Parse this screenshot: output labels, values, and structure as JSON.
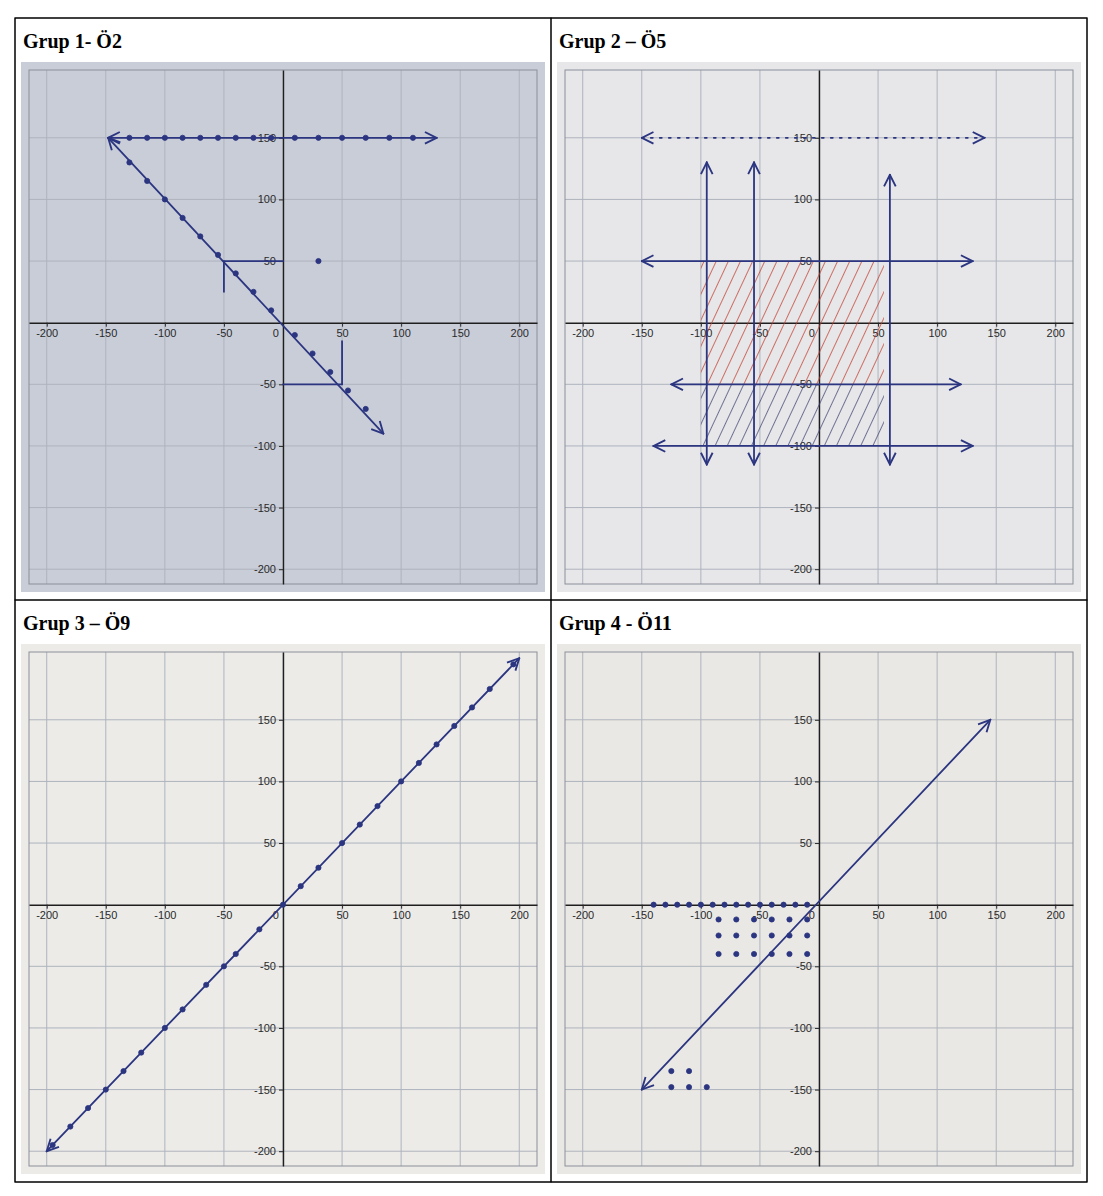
{
  "chart_data": [
    {
      "type": "line",
      "title": "Grup 1- Ö2",
      "color": "#2b3580",
      "grid": true,
      "xlim": [
        -215,
        215
      ],
      "ylim": [
        -212,
        205
      ],
      "xticks": [
        -200,
        -150,
        -100,
        -50,
        0,
        50,
        100,
        150,
        200
      ],
      "yticks": [
        -200,
        -150,
        -100,
        -50,
        50,
        100,
        150
      ],
      "series": [
        {
          "x": [
            -148,
            130
          ],
          "values": [
            150,
            150
          ],
          "marker": "arrow"
        },
        {
          "type": "scatter",
          "marker": "dot",
          "x": [
            -130,
            -115,
            -100,
            -85,
            -70,
            -55,
            -40,
            -25,
            -10,
            10,
            30,
            50,
            70,
            90,
            110
          ],
          "values": [
            150,
            150,
            150,
            150,
            150,
            150,
            150,
            150,
            150,
            150,
            150,
            150,
            150,
            150,
            150
          ]
        },
        {
          "x": [
            -148,
            85
          ],
          "values": [
            150,
            -90
          ],
          "marker": "arrow"
        },
        {
          "type": "scatter",
          "marker": "dot",
          "x": [
            -130,
            -115,
            -100,
            -85,
            -70,
            -55,
            -40,
            -25,
            -10,
            10,
            25,
            40,
            55,
            70
          ],
          "values": [
            130,
            115,
            100,
            85,
            70,
            55,
            40,
            25,
            10,
            -10,
            -25,
            -40,
            -55,
            -70
          ]
        },
        {
          "x": [
            -50,
            0
          ],
          "values": [
            50,
            50
          ]
        },
        {
          "x": [
            -50,
            -50
          ],
          "values": [
            50,
            25
          ]
        },
        {
          "x": [
            0,
            50
          ],
          "values": [
            -50,
            -50
          ]
        },
        {
          "x": [
            50,
            50
          ],
          "values": [
            -50,
            -15
          ]
        },
        {
          "type": "scatter",
          "marker": "dot",
          "x": [
            30
          ],
          "values": [
            50
          ]
        }
      ]
    },
    {
      "type": "line",
      "title": "Grup 2 – Ö5",
      "color": "#2b3580",
      "grid": true,
      "xlim": [
        -215,
        215
      ],
      "ylim": [
        -212,
        205
      ],
      "xticks": [
        -200,
        -150,
        -100,
        -50,
        0,
        50,
        100,
        150,
        200
      ],
      "yticks": [
        -200,
        -150,
        -100,
        -50,
        50,
        100,
        150
      ],
      "series": [
        {
          "type": "area",
          "x": [
            -100,
            55
          ],
          "values": [
            50,
            50
          ],
          "base": [
            -50,
            -50
          ],
          "color": "#c0392b"
        },
        {
          "type": "area",
          "x": [
            -100,
            55
          ],
          "values": [
            -50,
            -50
          ],
          "base": [
            -100,
            -100
          ],
          "color": "#3a3f6e"
        },
        {
          "x": [
            -150,
            140
          ],
          "values": [
            150,
            150
          ],
          "marker": "arrow",
          "line_style": "dotted"
        },
        {
          "x": [
            -150,
            130
          ],
          "values": [
            50,
            50
          ],
          "marker": "arrow"
        },
        {
          "x": [
            -125,
            120
          ],
          "values": [
            -50,
            -50
          ],
          "marker": "arrow"
        },
        {
          "x": [
            -140,
            130
          ],
          "values": [
            -100,
            -100
          ],
          "marker": "arrow"
        },
        {
          "x": [
            -95,
            -95
          ],
          "values": [
            -115,
            130
          ],
          "marker": "arrow"
        },
        {
          "x": [
            -55,
            -55
          ],
          "values": [
            -115,
            130
          ],
          "marker": "arrow"
        },
        {
          "x": [
            60,
            60
          ],
          "values": [
            -115,
            120
          ],
          "marker": "arrow"
        }
      ]
    },
    {
      "type": "line",
      "title": "Grup 3 – Ö9",
      "color": "#2b3580",
      "grid": true,
      "xlim": [
        -215,
        215
      ],
      "ylim": [
        -212,
        205
      ],
      "xticks": [
        -200,
        -150,
        -100,
        -50,
        0,
        50,
        100,
        150,
        200
      ],
      "yticks": [
        -200,
        -150,
        -100,
        -50,
        50,
        100,
        150
      ],
      "series": [
        {
          "x": [
            -200,
            200
          ],
          "values": [
            -200,
            200
          ],
          "marker": "arrow"
        },
        {
          "type": "scatter",
          "marker": "dot",
          "x": [
            -195,
            -180,
            -165,
            -150,
            -135,
            -120,
            -100,
            -85,
            -65,
            -50,
            -40,
            -20,
            0,
            15,
            30,
            50,
            65,
            80,
            100,
            115,
            130,
            145,
            160,
            175,
            195
          ],
          "values": [
            -195,
            -180,
            -165,
            -150,
            -135,
            -120,
            -100,
            -85,
            -65,
            -50,
            -40,
            -20,
            0,
            15,
            30,
            50,
            65,
            80,
            100,
            115,
            130,
            145,
            160,
            175,
            195
          ]
        }
      ]
    },
    {
      "type": "line",
      "title": "Grup 4 - Ö11",
      "color": "#2b3580",
      "grid": true,
      "xlim": [
        -215,
        215
      ],
      "ylim": [
        -212,
        205
      ],
      "xticks": [
        -200,
        -150,
        -100,
        -50,
        0,
        50,
        100,
        150,
        200
      ],
      "yticks": [
        -200,
        -150,
        -100,
        -50,
        50,
        100,
        150
      ],
      "series": [
        {
          "x": [
            -150,
            145
          ],
          "values": [
            -150,
            150
          ],
          "marker": "arrow"
        },
        {
          "type": "scatter",
          "marker": "dot",
          "x": [
            -140,
            -130,
            -120,
            -110,
            -100,
            -90,
            -80,
            -70,
            -60,
            -50,
            -40,
            -30,
            -20,
            -10,
            -85,
            -70,
            -55,
            -40,
            -25,
            -10,
            -85,
            -70,
            -55,
            -40,
            -25,
            -10,
            -85,
            -70,
            -55,
            -40,
            -25,
            -10,
            -125,
            -110,
            -125,
            -110,
            -95
          ],
          "values": [
            0,
            0,
            0,
            0,
            0,
            0,
            0,
            0,
            0,
            0,
            0,
            0,
            0,
            0,
            -12,
            -12,
            -12,
            -12,
            -12,
            -12,
            -25,
            -25,
            -25,
            -25,
            -25,
            -25,
            -40,
            -40,
            -40,
            -40,
            -40,
            -40,
            -135,
            -135,
            -148,
            -148,
            -148
          ]
        }
      ]
    }
  ]
}
